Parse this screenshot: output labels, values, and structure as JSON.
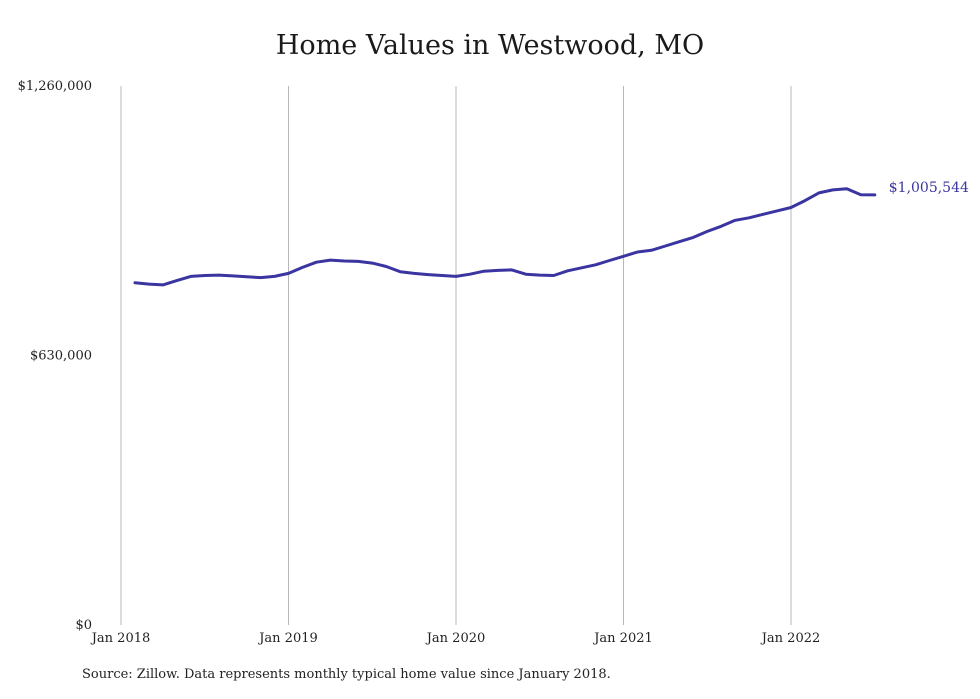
{
  "chart_data": {
    "type": "line",
    "title": "Home Values in Westwood, MO",
    "xlabel": "",
    "ylabel": "",
    "y_ticks": [
      "$0",
      "$630,000",
      "$1,260,000"
    ],
    "ylim": [
      0,
      1260000
    ],
    "x_ticks": [
      "Jan 2018",
      "Jan 2019",
      "Jan 2020",
      "Jan 2021",
      "Jan 2022"
    ],
    "grid": "vertical",
    "line_color": "#3a35a0",
    "series": [
      {
        "x": [
          "2018-02",
          "2018-03",
          "2018-04",
          "2018-05",
          "2018-06",
          "2018-07",
          "2018-08",
          "2018-09",
          "2018-10",
          "2018-11",
          "2018-12",
          "2019-01",
          "2019-02",
          "2019-03",
          "2019-04",
          "2019-05",
          "2019-06",
          "2019-07",
          "2019-08",
          "2019-09",
          "2019-10",
          "2019-11",
          "2019-12",
          "2020-01",
          "2020-02",
          "2020-03",
          "2020-04",
          "2020-05",
          "2020-06",
          "2020-07",
          "2020-08",
          "2020-09",
          "2020-10",
          "2020-11",
          "2020-12",
          "2021-01",
          "2021-02",
          "2021-03",
          "2021-04",
          "2021-05",
          "2021-06",
          "2021-07",
          "2021-08",
          "2021-09",
          "2021-10",
          "2021-11",
          "2021-12",
          "2022-01",
          "2022-02",
          "2022-03",
          "2022-04",
          "2022-05",
          "2022-06",
          "2022-07"
        ],
        "values": [
          800000,
          797000,
          795000,
          805000,
          815000,
          817000,
          818000,
          816000,
          814000,
          812000,
          815000,
          822000,
          836000,
          848000,
          853000,
          851000,
          850000,
          846000,
          838000,
          826000,
          822000,
          819000,
          817000,
          815000,
          820000,
          827000,
          829000,
          830000,
          820000,
          818000,
          817000,
          828000,
          835000,
          842000,
          852000,
          862000,
          872000,
          876000,
          886000,
          896000,
          906000,
          920000,
          932000,
          946000,
          952000,
          960000,
          968000,
          976000,
          992000,
          1010000,
          1017000,
          1020000,
          1006000,
          1005544
        ]
      }
    ],
    "end_label": "$1,005,544",
    "source": "Source: Zillow. Data represents monthly typical home value since January 2018."
  }
}
